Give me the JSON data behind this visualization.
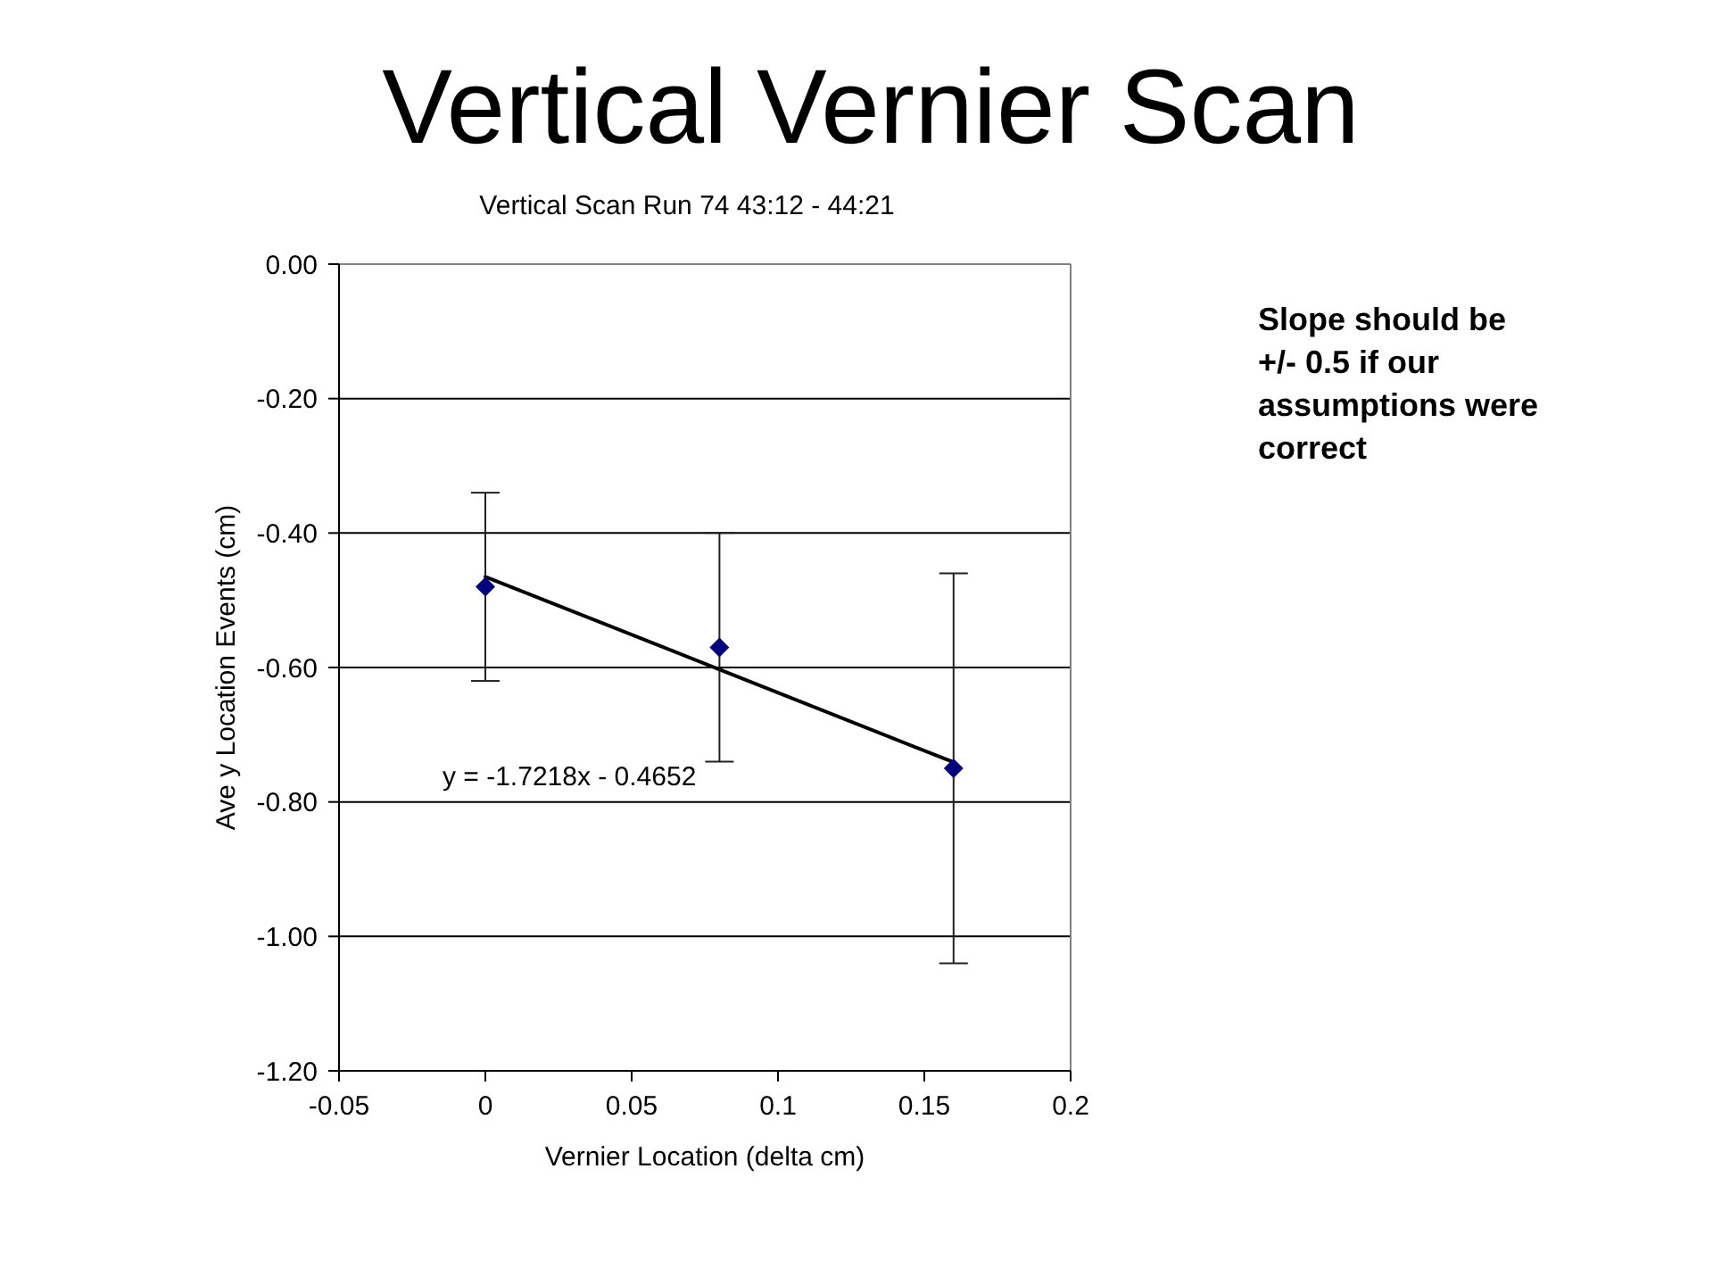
{
  "chart_data": {
    "type": "scatter",
    "title": "Vertical Vernier Scan",
    "subtitle": "Vertical Scan Run 74 43:12 - 44:21",
    "xlabel": "Vernier Location (delta cm)",
    "ylabel": "Ave y Location Events (cm)",
    "series": [
      {
        "color": "#000080",
        "x": [
          0,
          0.08,
          0.16
        ],
        "values": [
          -0.48,
          -0.57,
          -0.75
        ],
        "errors": [
          0.14,
          0.17,
          0.29
        ]
      },
      {
        "type": "line",
        "name": "y = -1.7218x - 0.4652",
        "color": "#000000",
        "x": [
          0,
          0.16
        ],
        "values": [
          -0.465,
          -0.741
        ],
        "marker": "none"
      }
    ],
    "xlim": [
      -0.05,
      0.2
    ],
    "xticks": [
      -0.05,
      0,
      0.05,
      0.1,
      0.15,
      0.2
    ],
    "ylim": [
      -1.2,
      0
    ],
    "yticks": [
      {
        "value": 0,
        "label": "0.00"
      },
      {
        "value": -0.2,
        "label": "-0.20"
      },
      {
        "value": -0.4,
        "label": "-0.40"
      },
      {
        "value": -0.6,
        "label": "-0.60"
      },
      {
        "value": -0.8,
        "label": "-0.80"
      },
      {
        "value": -1,
        "label": "-1.00"
      },
      {
        "value": -1.2,
        "label": "-1.20"
      }
    ],
    "grid": "y",
    "legend": false,
    "marker": "diamond",
    "annotations": [
      "Slope should be +/- 0.5 if our assumptions were correct"
    ]
  }
}
